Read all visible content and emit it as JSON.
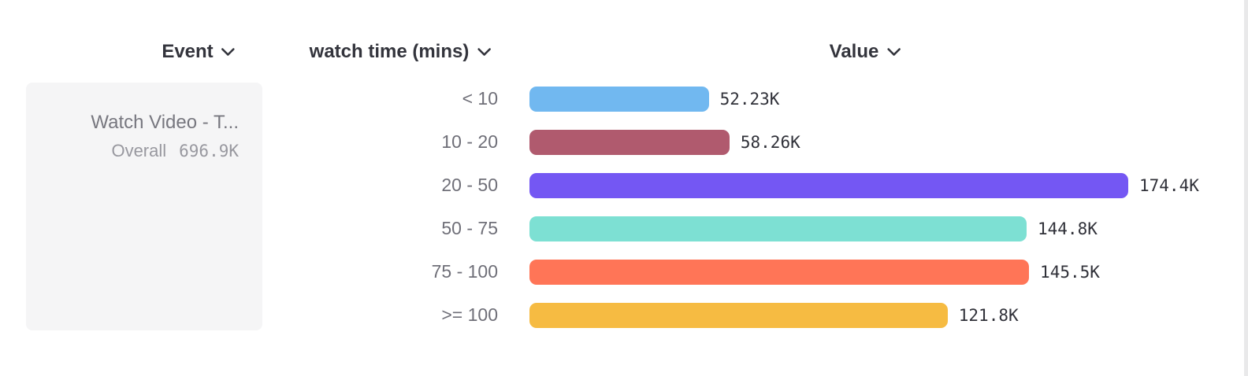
{
  "header": {
    "event_label": "Event",
    "bucket_label": "watch time (mins)",
    "value_label": "Value"
  },
  "event_card": {
    "name": "Watch Video - T...",
    "overall_label": "Overall",
    "overall_value": "696.9K"
  },
  "icons": {
    "chevron_down": "chevron-down-icon"
  },
  "colors": {
    "header_text": "#33343c",
    "bucket_text": "#6f6f78",
    "value_text": "#303139",
    "card_bg": "#f5f5f6",
    "card_text": "#77777f",
    "card_muted_text": "#98989f",
    "scrollbar": "#e9e9ea"
  },
  "chart_data": {
    "type": "bar",
    "orientation": "horizontal",
    "title": "",
    "xlabel": "Value",
    "ylabel": "watch time (mins)",
    "categories": [
      "< 10",
      "10 - 20",
      "20 - 50",
      "50 - 75",
      "75 - 100",
      ">= 100"
    ],
    "values": [
      52230,
      58260,
      174400,
      144800,
      145500,
      121800
    ],
    "value_labels": [
      "52.23K",
      "58.26K",
      "174.4K",
      "144.8K",
      "145.5K",
      "121.8K"
    ],
    "bar_colors": [
      "#71b8f0",
      "#b05a6e",
      "#7457f3",
      "#7de0d3",
      "#ff7557",
      "#f6bb42"
    ],
    "xlim": [
      0,
      174400
    ],
    "grid": false,
    "legend": false,
    "overall_total": 696900
  }
}
